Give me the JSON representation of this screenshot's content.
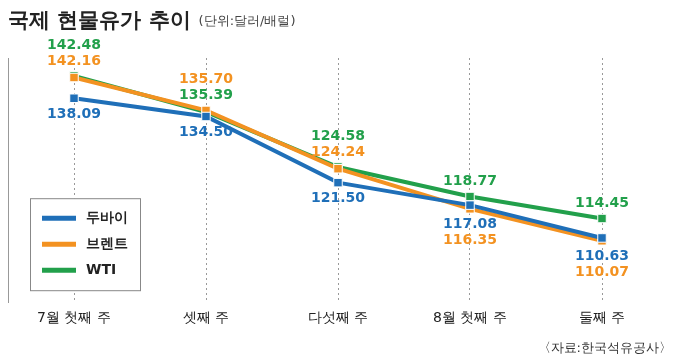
{
  "chart_data": {
    "type": "line",
    "title": "국제 현물유가 추이",
    "subtitle": "(단위:달러/배럴)",
    "source": "〈자료:한국석유공사〉",
    "categories": [
      "7월 첫째 주",
      "셋째 주",
      "다섯째 주",
      "8월 첫째 주",
      "둘째 주"
    ],
    "series": [
      {
        "name": "두바이",
        "color": "#1f6fb8",
        "values": [
          138.09,
          134.5,
          121.5,
          117.08,
          110.63
        ],
        "value_labels": [
          "138.09",
          "134.50",
          "121.50",
          "117.08",
          "110.63"
        ]
      },
      {
        "name": "브렌트",
        "color": "#f39221",
        "values": [
          142.16,
          135.7,
          124.24,
          116.35,
          110.07
        ],
        "value_labels": [
          "142.16",
          "135.70",
          "124.24",
          "116.35",
          "110.07"
        ]
      },
      {
        "name": "WTI",
        "color": "#22a04b",
        "values": [
          142.48,
          135.39,
          124.58,
          118.77,
          114.45
        ],
        "value_labels": [
          "142.48",
          "135.39",
          "124.58",
          "118.77",
          "114.45"
        ]
      }
    ],
    "ylim": [
      98,
      146
    ],
    "tick_labels": "x",
    "grid": "x",
    "legend": "lower left",
    "data_labels": true,
    "marker": "square"
  }
}
